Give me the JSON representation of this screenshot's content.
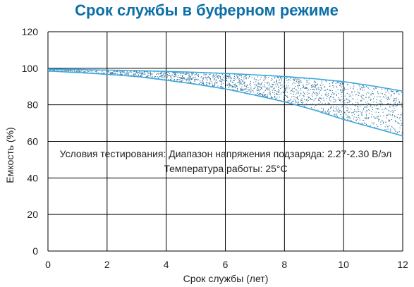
{
  "chart_data": {
    "type": "area",
    "title": "Срок службы в буферном режиме",
    "xlabel": "Срок службы (лет)",
    "ylabel": "Емкость (%)",
    "xlim": [
      0,
      12
    ],
    "ylim": [
      0,
      120
    ],
    "x_ticks": [
      "0",
      "2",
      "4",
      "6",
      "8",
      "10",
      "12"
    ],
    "y_ticks": [
      "0",
      "20",
      "40",
      "60",
      "80",
      "100",
      "120"
    ],
    "grid": true,
    "colors": {
      "title": "#0c6fa8",
      "curve": "#3aa7dd",
      "dots": "#2e6f9a",
      "grid": "#000000"
    },
    "series": [
      {
        "role": "upper",
        "x": [
          0,
          1,
          2,
          3,
          4,
          5,
          6,
          7,
          8,
          9,
          10,
          11,
          12
        ],
        "y": [
          99.5,
          99.3,
          99,
          98.7,
          98.3,
          97.8,
          97.2,
          96.4,
          95.5,
          94.3,
          92.7,
          90.3,
          87.5
        ]
      },
      {
        "role": "lower",
        "x": [
          0,
          1,
          2,
          3,
          4,
          5,
          6,
          7,
          8,
          9,
          10,
          11,
          12
        ],
        "y": [
          98.5,
          97.7,
          96.7,
          95.5,
          93.5,
          91.3,
          88.7,
          85.3,
          81.7,
          77.2,
          72,
          67.5,
          63
        ]
      }
    ],
    "annotations": [
      "Условия тестирования: Диапазон напряжения подзаряда: 2.27-2.30 В/эл",
      "Температура работы: 25°C"
    ]
  }
}
